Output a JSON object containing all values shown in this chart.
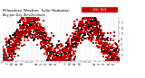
{
  "title": "Milwaukee Weather  Solar Radiation",
  "subtitle": "Avg per Day W/m2/minute",
  "background_color": "#ffffff",
  "plot_bg_color": "#ffffff",
  "grid_color": "#bbbbbb",
  "ylim": [
    0,
    8
  ],
  "ytick_labels": [
    "1",
    "2",
    "3",
    "4",
    "5",
    "6",
    "7"
  ],
  "ytick_vals": [
    1,
    2,
    3,
    4,
    5,
    6,
    7
  ],
  "color1": "#000000",
  "color2": "#cc0000",
  "legend_color": "#cc0000",
  "n_points": 730,
  "n_vgrid": 24,
  "title_fontsize": 3.0,
  "tick_fontsize": 2.2,
  "dot_size": 0.8
}
